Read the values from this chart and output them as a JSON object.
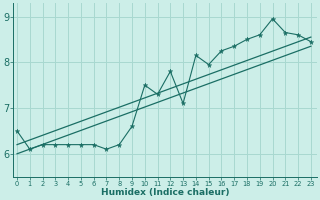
{
  "xlabel": "Humidex (Indice chaleur)",
  "background_color": "#cceee8",
  "line_color": "#1a6e64",
  "grid_color": "#a8d8d0",
  "x_data": [
    0,
    1,
    2,
    3,
    4,
    5,
    6,
    7,
    8,
    9,
    10,
    11,
    12,
    13,
    14,
    15,
    16,
    17,
    18,
    19,
    20,
    21,
    22,
    23
  ],
  "y_data": [
    6.5,
    6.1,
    6.2,
    6.2,
    6.2,
    6.2,
    6.2,
    6.1,
    6.2,
    6.6,
    7.5,
    7.3,
    7.8,
    7.1,
    8.15,
    7.95,
    8.25,
    8.35,
    8.5,
    8.6,
    8.95,
    8.65,
    8.6,
    8.45
  ],
  "trend1_x": [
    0,
    23
  ],
  "trend1_y": [
    6.0,
    8.35
  ],
  "trend2_x": [
    0,
    23
  ],
  "trend2_y": [
    6.2,
    8.55
  ],
  "ylim": [
    5.5,
    9.3
  ],
  "xlim": [
    -0.3,
    23.5
  ],
  "yticks": [
    6,
    7,
    8,
    9
  ],
  "xticks": [
    0,
    1,
    2,
    3,
    4,
    5,
    6,
    7,
    8,
    9,
    10,
    11,
    12,
    13,
    14,
    15,
    16,
    17,
    18,
    19,
    20,
    21,
    22,
    23
  ],
  "xlabel_fontsize": 6.5,
  "ytick_fontsize": 7,
  "xtick_fontsize": 4.8
}
